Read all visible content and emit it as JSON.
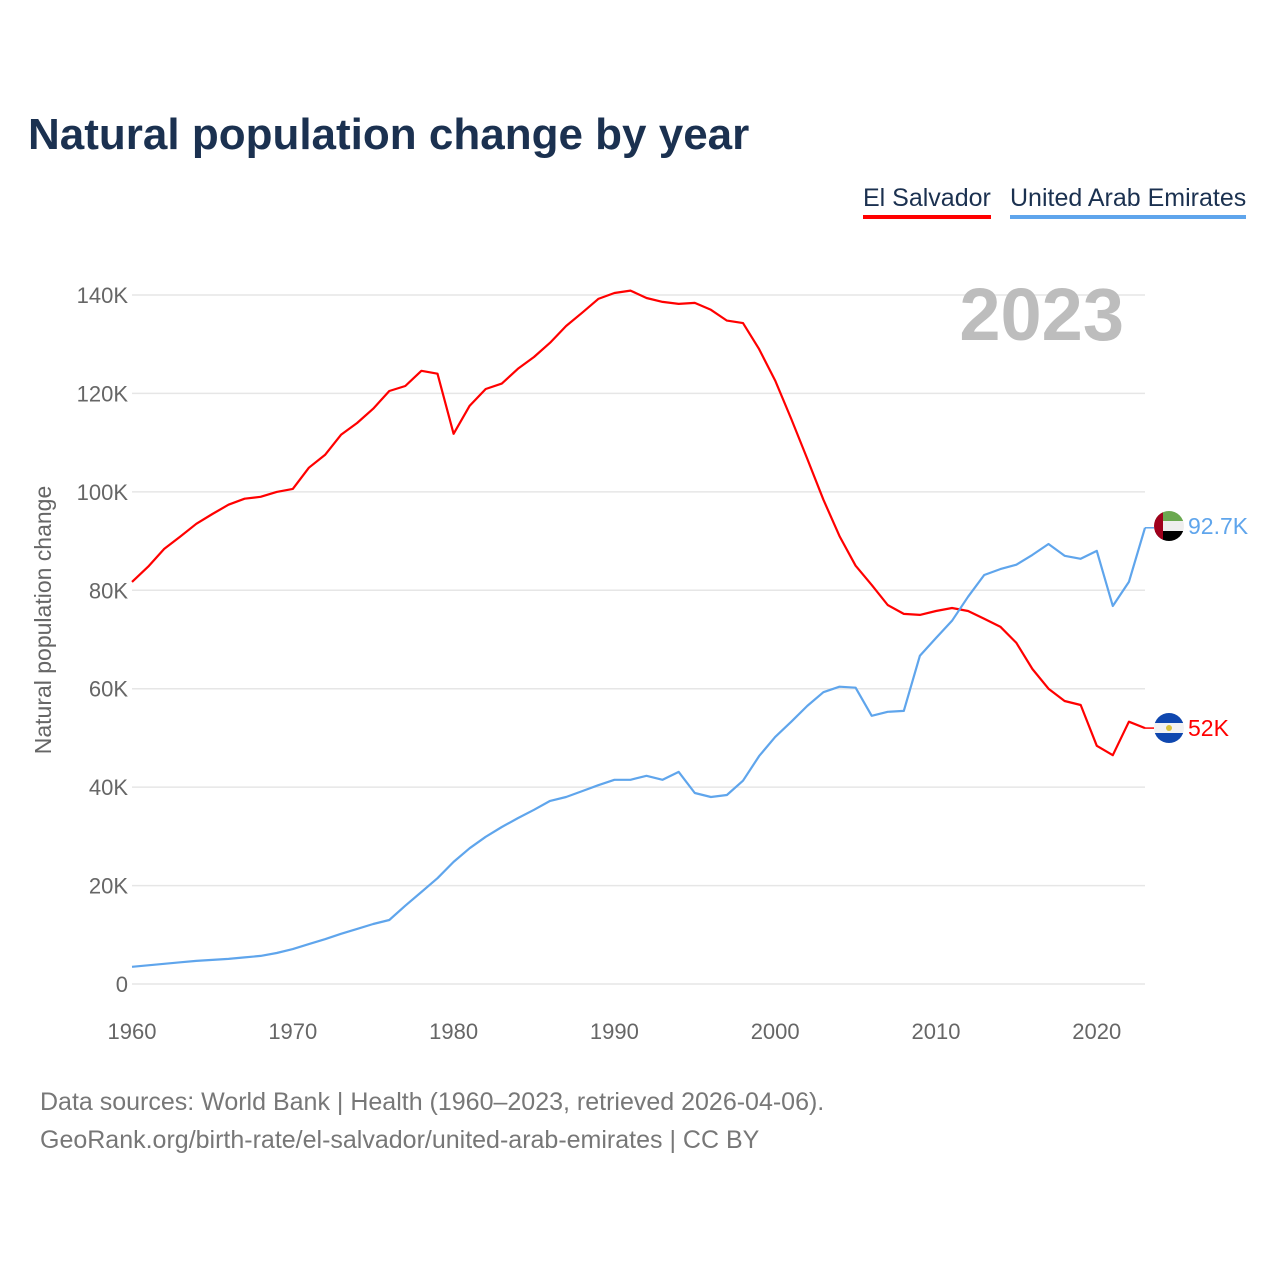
{
  "title": "Natural population change by year",
  "legend": [
    {
      "label": "El Salvador",
      "color": "#ff0000"
    },
    {
      "label": "United Arab Emirates",
      "color": "#5fa5ec"
    }
  ],
  "year_label": "2023",
  "footer": {
    "line1": "Data sources: World Bank | Health (1960–2023, retrieved 2026-04-06).",
    "line2": "GeoRank.org/birth-rate/el-salvador/united-arab-emirates | CC BY"
  },
  "chart_data": {
    "type": "line",
    "title": "Natural population change by year",
    "xlabel": "",
    "ylabel": "Natural population change",
    "xlim": [
      1960,
      2023
    ],
    "ylim": [
      0,
      140000
    ],
    "x_ticks": [
      1960,
      1970,
      1980,
      1990,
      2000,
      2010,
      2020
    ],
    "x_tick_labels": [
      "1960",
      "1970",
      "1980",
      "1990",
      "2000",
      "2010",
      "2020"
    ],
    "y_ticks": [
      0,
      20000,
      40000,
      60000,
      80000,
      100000,
      120000,
      140000
    ],
    "y_tick_labels": [
      "0",
      "20K",
      "40K",
      "60K",
      "80K",
      "100K",
      "120K",
      "140K"
    ],
    "grid": true,
    "legend_placement": "top-right",
    "x_start": 1960,
    "series": [
      {
        "name": "El Salvador",
        "color": "#ff0000",
        "end_label": "52K",
        "flag": "el-salvador",
        "values": [
          81700,
          84800,
          88400,
          90900,
          93500,
          95500,
          97400,
          98600,
          99000,
          100000,
          100600,
          104900,
          107500,
          111600,
          114000,
          116900,
          120500,
          121500,
          124600,
          124000,
          111800,
          117500,
          120900,
          122000,
          125000,
          127400,
          130300,
          133700,
          136400,
          139200,
          140400,
          140900,
          139400,
          138600,
          138200,
          138400,
          137000,
          134800,
          134300,
          129000,
          122600,
          114800,
          106700,
          98400,
          91000,
          85000,
          81100,
          77000,
          75200,
          75000,
          75800,
          76400,
          75800,
          74200,
          72600,
          69300,
          64000,
          60000,
          57500,
          56700,
          48400,
          46500,
          53300,
          52000
        ]
      },
      {
        "name": "United Arab Emirates",
        "color": "#5fa5ec",
        "end_label": "92.7K",
        "flag": "uae",
        "values": [
          3500,
          3800,
          4100,
          4400,
          4700,
          4900,
          5100,
          5400,
          5700,
          6300,
          7100,
          8100,
          9100,
          10200,
          11200,
          12200,
          13000,
          15900,
          18700,
          21500,
          24800,
          27600,
          29900,
          31900,
          33700,
          35400,
          37200,
          38000,
          39200,
          40400,
          41500,
          41500,
          42300,
          41500,
          43100,
          38800,
          38000,
          38400,
          41300,
          46300,
          50200,
          53300,
          56500,
          59300,
          60400,
          60200,
          54500,
          55300,
          55500,
          66700,
          70300,
          73800,
          78700,
          83100,
          84300,
          85200,
          87200,
          89400,
          87000,
          86400,
          88000,
          76800,
          81700,
          92700
        ]
      }
    ]
  }
}
